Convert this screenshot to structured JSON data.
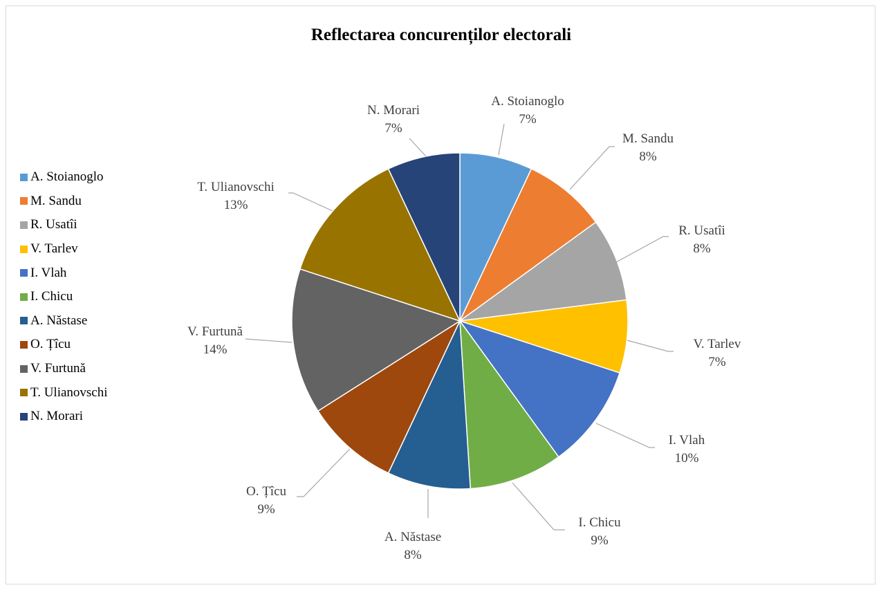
{
  "chart_data": {
    "type": "pie",
    "title": "Reflectarea concurenților electorali",
    "legend_position": "left",
    "slices": [
      {
        "label": "A. Stoianoglo",
        "value": 7,
        "percent": "7%",
        "color": "#5b9bd5"
      },
      {
        "label": "M. Sandu",
        "value": 8,
        "percent": "8%",
        "color": "#ed7d31"
      },
      {
        "label": "R. Usatîi",
        "value": 8,
        "percent": "8%",
        "color": "#a5a5a5"
      },
      {
        "label": "V. Tarlev",
        "value": 7,
        "percent": "7%",
        "color": "#ffc000"
      },
      {
        "label": "I. Vlah",
        "value": 10,
        "percent": "10%",
        "color": "#4472c4"
      },
      {
        "label": "I. Chicu",
        "value": 9,
        "percent": "9%",
        "color": "#70ad47"
      },
      {
        "label": "A. Năstase",
        "value": 8,
        "percent": "8%",
        "color": "#255e91"
      },
      {
        "label": "O. Țîcu",
        "value": 9,
        "percent": "9%",
        "color": "#9e480e"
      },
      {
        "label": "V. Furtună",
        "value": 14,
        "percent": "14%",
        "color": "#636363"
      },
      {
        "label": "T. Ulianovschi",
        "value": 13,
        "percent": "13%",
        "color": "#997300"
      },
      {
        "label": "N. Morari",
        "value": 7,
        "percent": "7%",
        "color": "#264478"
      }
    ]
  }
}
